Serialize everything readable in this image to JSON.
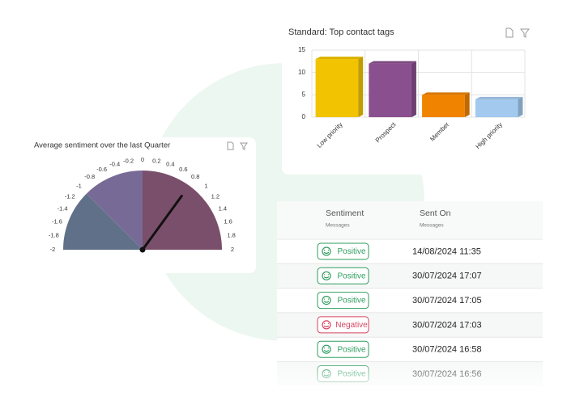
{
  "chart_data": [
    {
      "type": "bar",
      "title": "Standard: Top contact tags",
      "categories": [
        "Low priority",
        "Prospect",
        "Member",
        "High priority"
      ],
      "values": [
        13,
        12,
        5,
        4
      ],
      "colors": [
        "#f2c300",
        "#8a4f8e",
        "#f08300",
        "#a3c9ee"
      ],
      "ylim": [
        0,
        15
      ],
      "yticks": [
        0,
        5,
        10,
        15
      ],
      "grid": true
    },
    {
      "type": "gauge",
      "title": "Average sentiment over the last Quarter",
      "value": 0.8,
      "xlim": [
        -2,
        2
      ],
      "xticks": [
        -2,
        -1.8,
        -1.6,
        -1.4,
        -1.2,
        -1,
        -0.8,
        -0.6,
        -0.4,
        -0.2,
        0,
        0.2,
        0.4,
        0.6,
        0.8,
        1,
        1.2,
        1.4,
        1.6,
        1.8,
        2
      ],
      "bands": [
        {
          "from": -2,
          "to": -1,
          "color": "#5f7088"
        },
        {
          "from": -1,
          "to": 0,
          "color": "#786a96"
        },
        {
          "from": 0,
          "to": 2,
          "color": "#7a4f6b"
        }
      ]
    }
  ],
  "table": {
    "columns": [
      {
        "title": "Sentiment",
        "subtitle": "Messages"
      },
      {
        "title": "Sent On",
        "subtitle": "Messages"
      }
    ],
    "rows": [
      {
        "sentiment": "Positive",
        "sent_on": "14/08/2024 11:35",
        "color": "#2e9e5e"
      },
      {
        "sentiment": "Positive",
        "sent_on": "30/07/2024 17:07",
        "color": "#2e9e5e"
      },
      {
        "sentiment": "Positive",
        "sent_on": "30/07/2024 17:05",
        "color": "#2e9e5e"
      },
      {
        "sentiment": "Negative",
        "sent_on": "30/07/2024 17:03",
        "color": "#d6455f"
      },
      {
        "sentiment": "Positive",
        "sent_on": "30/07/2024 16:58",
        "color": "#2e9e5e"
      },
      {
        "sentiment": "Positive",
        "sent_on": "30/07/2024 16:56",
        "color": "#2e9e5e"
      }
    ]
  }
}
